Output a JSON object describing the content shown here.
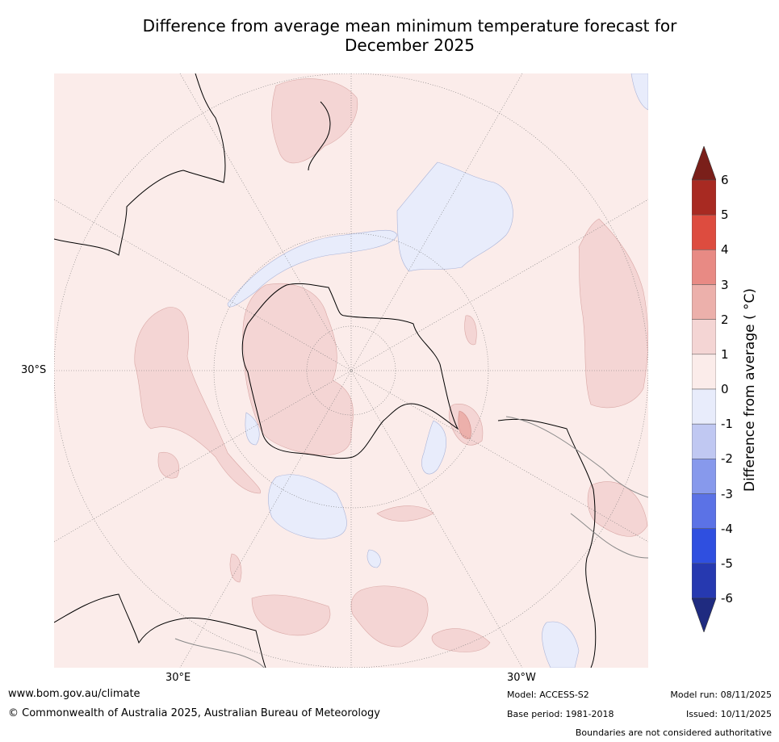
{
  "title_line1": "Difference from average mean minimum temperature forecast for",
  "title_line2": "December 2025",
  "map": {
    "latitude_label": "30°S",
    "longitude_labels": {
      "east": "30°E",
      "west": "30°W"
    },
    "colors": {
      "ocean_neutral": "#fbecea",
      "warm_1": "#f4d5d4",
      "warm_2": "#ecb0ab",
      "cool_1": "#e8ecfb",
      "land_line": "#000000",
      "grid": "#777777"
    }
  },
  "colorbar": {
    "label": "Difference from average ( °C)",
    "ticks": [
      "6",
      "5",
      "4",
      "3",
      "2",
      "1",
      "0",
      "-1",
      "-2",
      "-3",
      "-4",
      "-5",
      "-6"
    ],
    "colors": [
      "#a82a22",
      "#dd4c3f",
      "#e88a84",
      "#ecb0ab",
      "#f4d5d4",
      "#fbecea",
      "#e8ecfb",
      "#c0c8f2",
      "#8799ec",
      "#5b72e6",
      "#2f4fe0",
      "#2639b0"
    ],
    "over_color": "#7a1f1a",
    "under_color": "#1f2b80"
  },
  "footer": {
    "website": "www.bom.gov.au/climate",
    "copyright": "© Commonwealth of Australia 2025, Australian Bureau of Meteorology",
    "model": "Model: ACCESS-S2",
    "base_period": "Base period: 1981-2018",
    "model_run": "Model run: 08/11/2025",
    "issued": "Issued: 10/11/2025",
    "disclaimer": "Boundaries are not considered authoritative"
  }
}
